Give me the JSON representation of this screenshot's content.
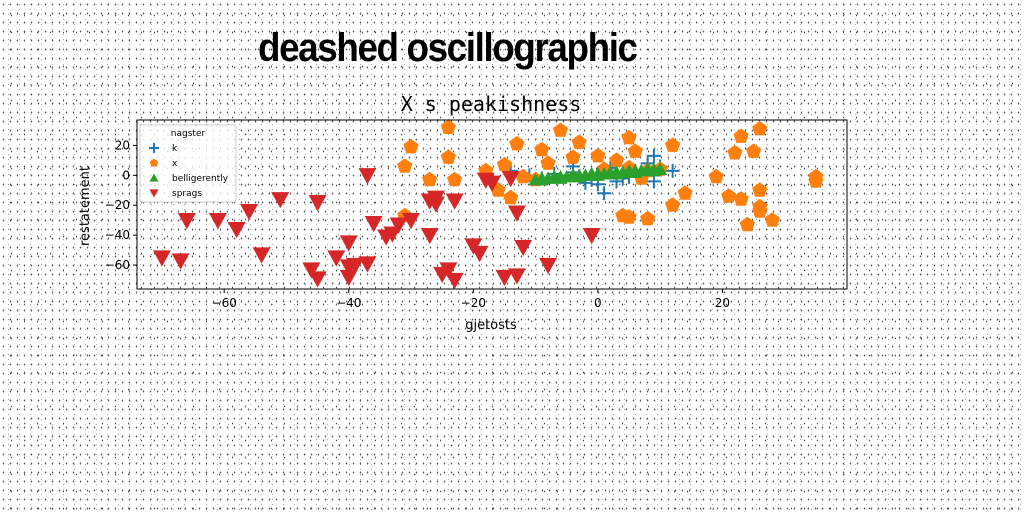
{
  "banner": "deashed oscillographic",
  "chart_data": {
    "type": "scatter",
    "title": "X s peakishness",
    "xlabel": "gjetosts",
    "ylabel": "restatement",
    "xlim": [
      -74,
      40
    ],
    "ylim": [
      -76,
      37
    ],
    "xticks": [
      -60,
      -40,
      -20,
      0,
      20
    ],
    "yticks": [
      20,
      0,
      -20,
      -40,
      -60
    ],
    "grid": false,
    "legend": {
      "title": "nagster",
      "placement": "top-left"
    },
    "series": [
      {
        "name": "k",
        "marker": "plus",
        "color": "#1f77b4",
        "points": [
          [
            -14,
            3
          ],
          [
            -11,
            0
          ],
          [
            -9,
            -2
          ],
          [
            -7,
            1
          ],
          [
            -4,
            6
          ],
          [
            -4,
            2
          ],
          [
            -2,
            -5
          ],
          [
            -1,
            -3
          ],
          [
            0,
            -6
          ],
          [
            1,
            -12
          ],
          [
            1,
            2
          ],
          [
            2,
            5
          ],
          [
            3,
            -4
          ],
          [
            4,
            -2
          ],
          [
            5,
            -1
          ],
          [
            6,
            3
          ],
          [
            7,
            1
          ],
          [
            8,
            8
          ],
          [
            9,
            13
          ],
          [
            9,
            -4
          ],
          [
            10,
            6
          ],
          [
            12,
            3
          ]
        ]
      },
      {
        "name": "x",
        "marker": "pentagon",
        "color": "#ff7f0e",
        "points": [
          [
            -31,
            6
          ],
          [
            -30,
            19
          ],
          [
            -31,
            -27
          ],
          [
            -27,
            -3
          ],
          [
            -24,
            32
          ],
          [
            -24,
            12
          ],
          [
            -23,
            -3
          ],
          [
            -18,
            3
          ],
          [
            -16,
            -10
          ],
          [
            -15,
            7
          ],
          [
            -14,
            -15
          ],
          [
            -13,
            21
          ],
          [
            -12,
            -1
          ],
          [
            -10,
            -3
          ],
          [
            -9,
            17
          ],
          [
            -8,
            8
          ],
          [
            -6,
            30
          ],
          [
            -4,
            12
          ],
          [
            -3,
            22
          ],
          [
            0,
            13
          ],
          [
            1,
            4
          ],
          [
            3,
            10
          ],
          [
            4,
            -27
          ],
          [
            5,
            -28
          ],
          [
            5,
            25
          ],
          [
            5,
            5
          ],
          [
            6,
            16
          ],
          [
            7,
            -2
          ],
          [
            8,
            -29
          ],
          [
            8,
            3
          ],
          [
            10,
            4
          ],
          [
            12,
            20
          ],
          [
            12,
            -20
          ],
          [
            14,
            -12
          ],
          [
            19,
            -1
          ],
          [
            21,
            -14
          ],
          [
            22,
            15
          ],
          [
            23,
            26
          ],
          [
            23,
            -16
          ],
          [
            24,
            -33
          ],
          [
            25,
            16
          ],
          [
            26,
            31
          ],
          [
            26,
            -10
          ],
          [
            26,
            -21
          ],
          [
            26,
            -24
          ],
          [
            28,
            -30
          ],
          [
            35,
            -1
          ],
          [
            35,
            -4
          ]
        ]
      },
      {
        "name": "belligerently",
        "marker": "triangle-up",
        "color": "#2ca02c",
        "points": [
          [
            -10,
            -3
          ],
          [
            -9,
            -2
          ],
          [
            -8,
            -2
          ],
          [
            -7,
            -1
          ],
          [
            -6,
            -1
          ],
          [
            -5,
            -1
          ],
          [
            -4,
            0
          ],
          [
            -3,
            0
          ],
          [
            -2,
            0
          ],
          [
            -1,
            1
          ],
          [
            0,
            1
          ],
          [
            1,
            1
          ],
          [
            2,
            2
          ],
          [
            3,
            2
          ],
          [
            4,
            2
          ],
          [
            5,
            3
          ],
          [
            6,
            3
          ],
          [
            7,
            3
          ],
          [
            8,
            4
          ],
          [
            9,
            4
          ],
          [
            10,
            4
          ],
          [
            -9,
            -3
          ],
          [
            -6,
            -2
          ],
          [
            -3,
            -1
          ],
          [
            0,
            0
          ],
          [
            3,
            1
          ],
          [
            6,
            2
          ],
          [
            9,
            3
          ]
        ]
      },
      {
        "name": "sprags",
        "marker": "triangle-down",
        "color": "#d62728",
        "points": [
          [
            -70,
            -55
          ],
          [
            -67,
            -57
          ],
          [
            -66,
            -30
          ],
          [
            -61,
            -30
          ],
          [
            -58,
            -36
          ],
          [
            -56,
            -24
          ],
          [
            -54,
            -53
          ],
          [
            -51,
            -16
          ],
          [
            -46,
            -63
          ],
          [
            -45,
            -69
          ],
          [
            -45,
            -18
          ],
          [
            -42,
            -55
          ],
          [
            -40,
            -45
          ],
          [
            -40,
            -61
          ],
          [
            -40,
            -68
          ],
          [
            -39,
            -60
          ],
          [
            -37,
            0
          ],
          [
            -37,
            -59
          ],
          [
            -36,
            -32
          ],
          [
            -34,
            -41
          ],
          [
            -33,
            -39
          ],
          [
            -32,
            -33
          ],
          [
            -30,
            -30
          ],
          [
            -27,
            -40
          ],
          [
            -27,
            -17
          ],
          [
            -26,
            -15
          ],
          [
            -26,
            -19
          ],
          [
            -25,
            -66
          ],
          [
            -24,
            -63
          ],
          [
            -23,
            -17
          ],
          [
            -23,
            -70
          ],
          [
            -20,
            -47
          ],
          [
            -19,
            -52
          ],
          [
            -18,
            -3
          ],
          [
            -17,
            -5
          ],
          [
            -15,
            -68
          ],
          [
            -14,
            -2
          ],
          [
            -13,
            -67
          ],
          [
            -12,
            -48
          ],
          [
            -13,
            -25
          ],
          [
            -8,
            -60
          ],
          [
            -1,
            -40
          ]
        ]
      }
    ]
  }
}
